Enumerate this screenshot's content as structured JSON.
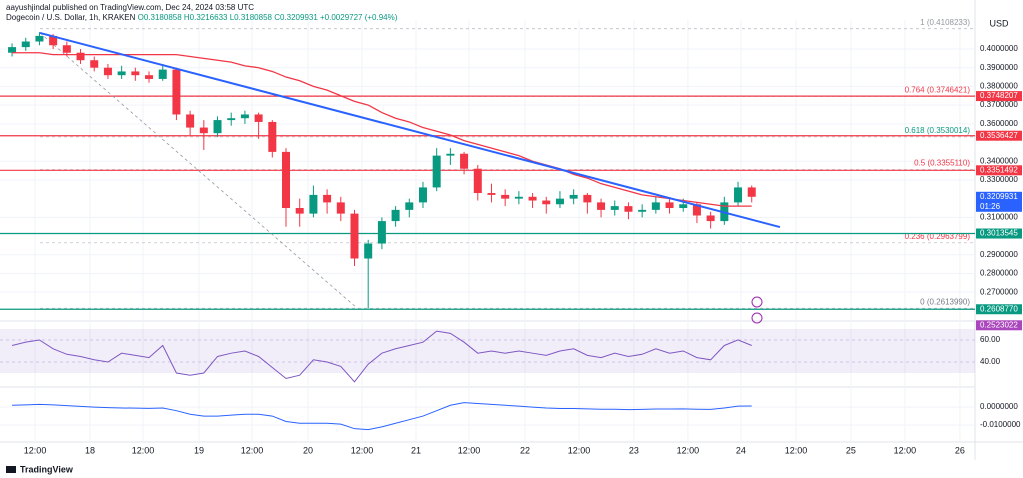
{
  "header": {
    "author": "aayushjindal published on TradingView.com, Dec 24, 2024 03:58 UTC"
  },
  "chart_data": {
    "type": "candlestick",
    "title": "Dogecoin / U.S. Dollar, 1h, KRAKEN",
    "subtitle": "O0.3180858 H0.3216633 L0.3180858 C0.3209931 +0.0029727 (+0.94%)",
    "currency": "USD",
    "up_color": "#089981",
    "down_color": "#f23645",
    "ohlc": [
      [
        0.398,
        0.403,
        0.396,
        0.401
      ],
      [
        0.401,
        0.406,
        0.399,
        0.404
      ],
      [
        0.404,
        0.409,
        0.402,
        0.407
      ],
      [
        0.407,
        0.408,
        0.4,
        0.402
      ],
      [
        0.402,
        0.404,
        0.396,
        0.398
      ],
      [
        0.398,
        0.4,
        0.392,
        0.394
      ],
      [
        0.394,
        0.396,
        0.388,
        0.39
      ],
      [
        0.39,
        0.392,
        0.384,
        0.386
      ],
      [
        0.386,
        0.391,
        0.384,
        0.388
      ],
      [
        0.388,
        0.39,
        0.383,
        0.386
      ],
      [
        0.386,
        0.388,
        0.382,
        0.384
      ],
      [
        0.384,
        0.392,
        0.383,
        0.389
      ],
      [
        0.389,
        0.39,
        0.362,
        0.365
      ],
      [
        0.365,
        0.367,
        0.354,
        0.358
      ],
      [
        0.358,
        0.362,
        0.346,
        0.355
      ],
      [
        0.355,
        0.364,
        0.353,
        0.362
      ],
      [
        0.362,
        0.366,
        0.359,
        0.363
      ],
      [
        0.363,
        0.367,
        0.36,
        0.365
      ],
      [
        0.365,
        0.366,
        0.352,
        0.361
      ],
      [
        0.361,
        0.362,
        0.342,
        0.345
      ],
      [
        0.345,
        0.347,
        0.305,
        0.315
      ],
      [
        0.315,
        0.32,
        0.305,
        0.312
      ],
      [
        0.312,
        0.327,
        0.31,
        0.322
      ],
      [
        0.322,
        0.325,
        0.312,
        0.318
      ],
      [
        0.318,
        0.321,
        0.308,
        0.312
      ],
      [
        0.312,
        0.314,
        0.284,
        0.288
      ],
      [
        0.288,
        0.298,
        0.2614,
        0.296
      ],
      [
        0.296,
        0.31,
        0.293,
        0.308
      ],
      [
        0.308,
        0.316,
        0.305,
        0.314
      ],
      [
        0.314,
        0.32,
        0.31,
        0.318
      ],
      [
        0.318,
        0.329,
        0.315,
        0.326
      ],
      [
        0.326,
        0.347,
        0.324,
        0.343
      ],
      [
        0.343,
        0.347,
        0.338,
        0.344
      ],
      [
        0.344,
        0.345,
        0.333,
        0.336
      ],
      [
        0.336,
        0.338,
        0.319,
        0.323
      ],
      [
        0.323,
        0.328,
        0.318,
        0.322
      ],
      [
        0.322,
        0.325,
        0.316,
        0.32
      ],
      [
        0.32,
        0.324,
        0.317,
        0.321
      ],
      [
        0.321,
        0.323,
        0.315,
        0.319
      ],
      [
        0.319,
        0.321,
        0.312,
        0.317
      ],
      [
        0.317,
        0.324,
        0.315,
        0.32
      ],
      [
        0.32,
        0.325,
        0.317,
        0.322
      ],
      [
        0.322,
        0.323,
        0.312,
        0.318
      ],
      [
        0.318,
        0.32,
        0.31,
        0.314
      ],
      [
        0.314,
        0.319,
        0.311,
        0.316
      ],
      [
        0.316,
        0.318,
        0.309,
        0.313
      ],
      [
        0.313,
        0.317,
        0.31,
        0.314
      ],
      [
        0.314,
        0.321,
        0.312,
        0.318
      ],
      [
        0.318,
        0.32,
        0.312,
        0.315
      ],
      [
        0.315,
        0.32,
        0.313,
        0.317
      ],
      [
        0.317,
        0.318,
        0.307,
        0.311
      ],
      [
        0.311,
        0.313,
        0.304,
        0.308
      ],
      [
        0.308,
        0.321,
        0.306,
        0.318
      ],
      [
        0.318,
        0.329,
        0.316,
        0.326
      ],
      [
        0.326,
        0.327,
        0.318,
        0.321
      ]
    ],
    "ma": {
      "color": "#f23645",
      "values": [
        0.398,
        0.398,
        0.398,
        0.397,
        0.397,
        0.397,
        0.397,
        0.397,
        0.397,
        0.397,
        0.397,
        0.397,
        0.397,
        0.396,
        0.395,
        0.394,
        0.393,
        0.391,
        0.39,
        0.388,
        0.385,
        0.383,
        0.38,
        0.378,
        0.375,
        0.372,
        0.37,
        0.366,
        0.363,
        0.361,
        0.358,
        0.356,
        0.354,
        0.351,
        0.349,
        0.347,
        0.345,
        0.343,
        0.34,
        0.338,
        0.336,
        0.333,
        0.331,
        0.328,
        0.326,
        0.324,
        0.322,
        0.321,
        0.32,
        0.319,
        0.318,
        0.317,
        0.316,
        0.316,
        0.316
      ]
    },
    "trendline": {
      "color": "#2962ff",
      "x": [
        2.04,
        56.06
      ],
      "values": [
        0.4086,
        0.3048
      ]
    },
    "fib_line": {
      "color": "#9598a1",
      "x": [
        2.04,
        25.2
      ],
      "values": [
        0.4086,
        0.2614
      ]
    },
    "levels": [
      {
        "value": 0.3748207,
        "label": "0.3748207",
        "color": "#f23645"
      },
      {
        "value": 0.3536427,
        "label": "0.3536427",
        "color": "#f23645"
      },
      {
        "value": 0.3351492,
        "label": "0.3351492",
        "color": "#f23645"
      },
      {
        "value": 0.3013545,
        "label": "0.3013545",
        "color": "#089981"
      },
      {
        "value": 0.260877,
        "label": "0.2608770",
        "color": "#089981"
      }
    ],
    "fib": [
      {
        "value": 0.4108233,
        "label": "1 (0.4108233)",
        "color": "#9598a1"
      },
      {
        "value": 0.3746421,
        "label": "0.764 (0.3746421)",
        "color": "#f23645"
      },
      {
        "value": 0.3530014,
        "label": "0.618 (0.3530014)",
        "color": "#089981"
      },
      {
        "value": 0.335511,
        "label": "0.5 (0.3355110)",
        "color": "#f23645"
      },
      {
        "value": 0.2963799,
        "label": "0.236 (0.2963799)",
        "color": "#f23645"
      },
      {
        "value": 0.261399,
        "label": "0 (0.2613990)",
        "color": "#787b86"
      }
    ],
    "badges": [
      {
        "value": 0.3209931,
        "label": "0.3209931",
        "time": "01:26",
        "color": "#2962ff"
      },
      {
        "value": 0.2523022,
        "label": "0.2523022",
        "color": "#ab47bc"
      }
    ],
    "xlim": [
      -0.88,
      70.3
    ],
    "xticks": [
      {
        "value": 1.68,
        "label": "12:00"
      },
      {
        "value": 5.69,
        "label": "18"
      },
      {
        "value": 9.56,
        "label": "12:00"
      },
      {
        "value": 13.65,
        "label": "19"
      },
      {
        "value": 17.52,
        "label": "12:00"
      },
      {
        "value": 21.61,
        "label": "20"
      },
      {
        "value": 25.55,
        "label": "12:00"
      },
      {
        "value": 29.49,
        "label": "21"
      },
      {
        "value": 33.36,
        "label": "12:00"
      },
      {
        "value": 37.45,
        "label": "22"
      },
      {
        "value": 41.39,
        "label": "12:00"
      },
      {
        "value": 45.4,
        "label": "23"
      },
      {
        "value": 49.34,
        "label": "12:00"
      },
      {
        "value": 53.21,
        "label": "24"
      },
      {
        "value": 57.23,
        "label": "12:00"
      },
      {
        "value": 61.24,
        "label": "25"
      },
      {
        "value": 65.18,
        "label": "12:00"
      },
      {
        "value": 69.2,
        "label": "26"
      }
    ],
    "ylim": [
      0.2562,
      0.4155
    ],
    "yticks": [
      {
        "value": 0.4,
        "label": "0.4000000"
      },
      {
        "value": 0.39,
        "label": "0.3900000"
      },
      {
        "value": 0.38,
        "label": "0.3800000"
      },
      {
        "value": 0.37,
        "label": "0.3700000"
      },
      {
        "value": 0.36,
        "label": "0.3600000"
      },
      {
        "value": 0.34,
        "label": "0.3400000"
      },
      {
        "value": 0.33,
        "label": "0.3300000"
      },
      {
        "value": 0.31,
        "label": "0.3100000"
      },
      {
        "value": 0.29,
        "label": "0.2900000"
      },
      {
        "value": 0.28,
        "label": "0.2800000"
      },
      {
        "value": 0.27,
        "label": "0.2700000"
      }
    ],
    "grid": true
  },
  "rsi": {
    "type": "line",
    "color": "#7e57c2",
    "band": [
      30,
      70
    ],
    "values": [
      55,
      58,
      60,
      52,
      47,
      45,
      42,
      40,
      48,
      46,
      44,
      55,
      30,
      28,
      30,
      45,
      48,
      50,
      45,
      35,
      25,
      28,
      42,
      40,
      36,
      22,
      38,
      48,
      52,
      55,
      58,
      68,
      66,
      58,
      48,
      50,
      48,
      50,
      48,
      46,
      50,
      52,
      46,
      44,
      48,
      45,
      47,
      52,
      48,
      50,
      44,
      42,
      55,
      60,
      55
    ],
    "ylim": [
      19.1,
      73.6
    ],
    "yticks": [
      {
        "value": 60,
        "label": "60.00"
      },
      {
        "value": 40,
        "label": "40.00"
      }
    ]
  },
  "macd": {
    "type": "line",
    "color": "#2962ff",
    "values": [
      0.001,
      0.0012,
      0.0015,
      0.0012,
      0.0008,
      0.0004,
      0,
      -0.0003,
      -0.0005,
      -0.0006,
      -0.0007,
      -0.0005,
      -0.002,
      -0.004,
      -0.005,
      -0.005,
      -0.0045,
      -0.004,
      -0.004,
      -0.005,
      -0.008,
      -0.009,
      -0.009,
      -0.009,
      -0.0095,
      -0.012,
      -0.0125,
      -0.011,
      -0.009,
      -0.007,
      -0.005,
      -0.002,
      0.001,
      0.0025,
      0.002,
      0.0015,
      0.001,
      0.0005,
      0,
      -0.0005,
      -0.0008,
      -0.0008,
      -0.001,
      -0.0012,
      -0.0012,
      -0.0014,
      -0.0013,
      -0.0011,
      -0.0011,
      -0.001,
      -0.0012,
      -0.0013,
      -0.0005,
      0.0005,
      0.0006
    ],
    "ylim": [
      -0.0194,
      0.0106
    ],
    "yticks": [
      {
        "value": 0,
        "label": "0.0000000"
      },
      {
        "value": -0.01,
        "label": "-0.0100000"
      }
    ]
  },
  "footer": {
    "brand": "TradingView"
  }
}
